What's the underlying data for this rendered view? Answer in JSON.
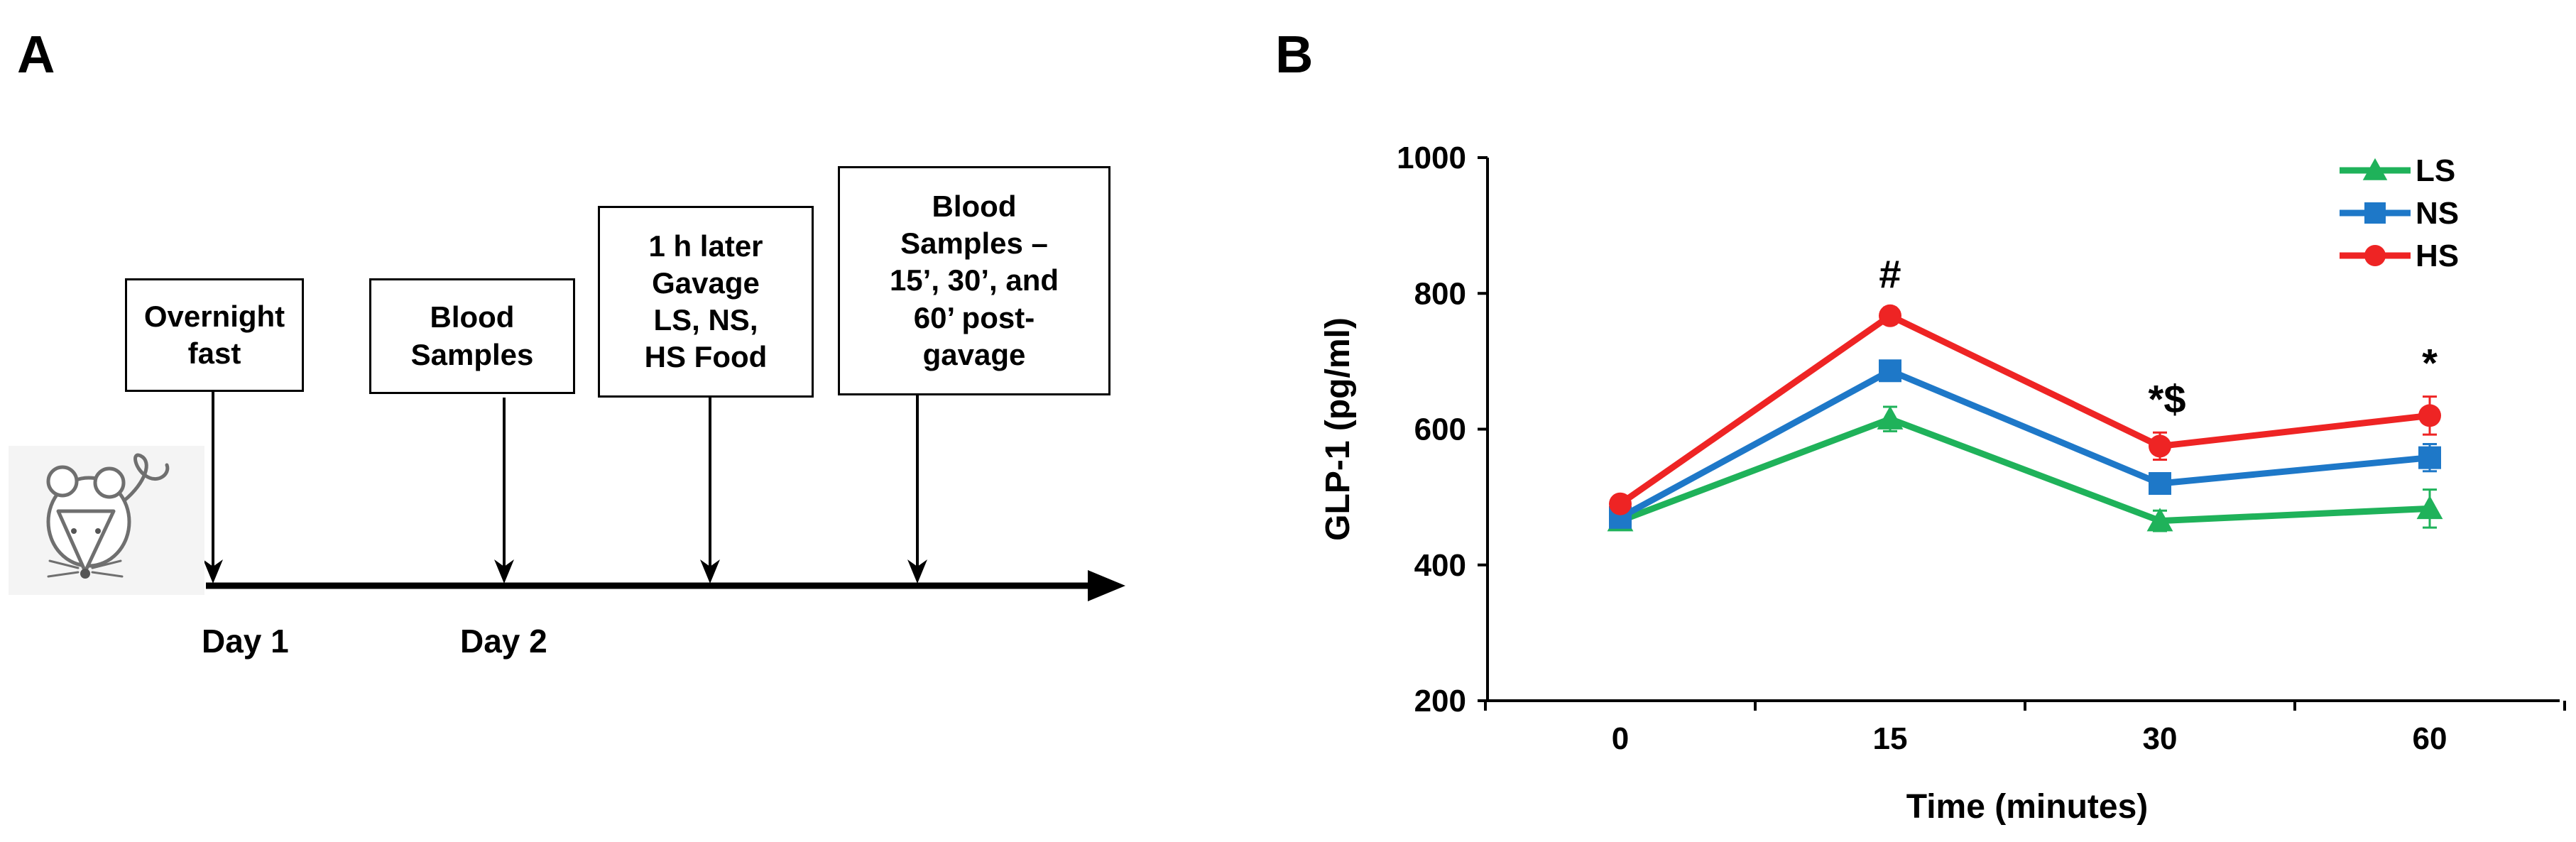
{
  "panels": {
    "a_label": "A",
    "b_label": "B"
  },
  "timeline": {
    "steps": [
      {
        "text": "Overnight\nfast"
      },
      {
        "text": "Blood\nSamples"
      },
      {
        "text": "1 h later\nGavage\nLS, NS,\nHS Food"
      },
      {
        "text": "Blood\nSamples –\n15’, 30’, and\n60’ post-\ngavage"
      }
    ],
    "days": [
      "Day 1",
      "Day 2"
    ],
    "icon": "mouse-icon"
  },
  "chart_data": {
    "type": "line",
    "title": "",
    "xlabel": "Time (minutes)",
    "ylabel": "GLP-1 (pg/ml)",
    "categories": [
      "0",
      "15",
      "30",
      "60"
    ],
    "ylim": [
      200,
      1000
    ],
    "yticks": [
      200,
      400,
      600,
      800,
      1000
    ],
    "legend_position": "top-right",
    "series": [
      {
        "name": "LS",
        "marker": "triangle",
        "color": "#1fb25a",
        "values": [
          465,
          615,
          465,
          483
        ],
        "errors": [
          8,
          18,
          15,
          28
        ]
      },
      {
        "name": "NS",
        "marker": "square",
        "color": "#1e78c8",
        "values": [
          470,
          686,
          520,
          558
        ],
        "errors": [
          8,
          14,
          15,
          20
        ]
      },
      {
        "name": "HS",
        "marker": "circle",
        "color": "#ee2424",
        "values": [
          490,
          767,
          575,
          620
        ],
        "errors": [
          8,
          12,
          20,
          28
        ]
      }
    ],
    "annotations": [
      {
        "category": "15",
        "text": "#"
      },
      {
        "category": "30",
        "text": "*$"
      },
      {
        "category": "60",
        "text": "*"
      }
    ]
  }
}
